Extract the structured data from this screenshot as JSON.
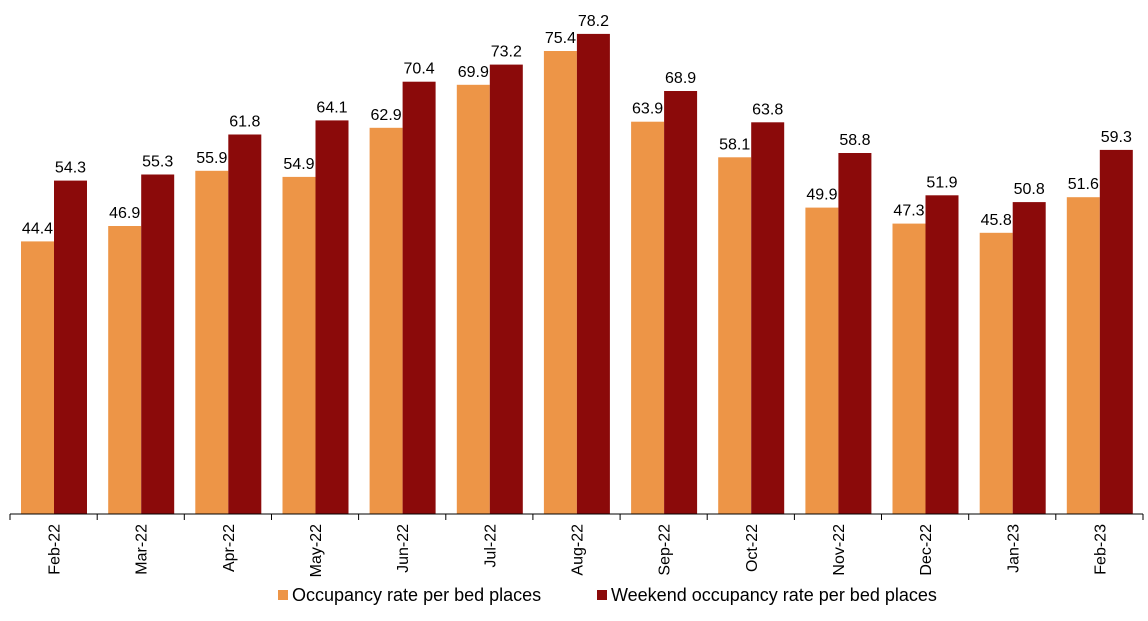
{
  "chart_data": {
    "type": "bar",
    "categories": [
      "Feb-22",
      "Mar-22",
      "Apr-22",
      "May-22",
      "Jun-22",
      "Jul-22",
      "Aug-22",
      "Sep-22",
      "Oct-22",
      "Nov-22",
      "Dec-22",
      "Jan-23",
      "Feb-23"
    ],
    "series": [
      {
        "name": "Occupancy rate per bed places",
        "color": "#ED9547",
        "values": [
          44.4,
          46.9,
          55.9,
          54.9,
          62.9,
          69.9,
          75.4,
          63.9,
          58.1,
          49.9,
          47.3,
          45.8,
          51.6
        ]
      },
      {
        "name": "Weekend occupancy rate per bed places",
        "color": "#8B0A0A",
        "values": [
          54.3,
          55.3,
          61.8,
          64.1,
          70.4,
          73.2,
          78.2,
          68.9,
          63.8,
          58.8,
          51.9,
          50.8,
          59.3
        ]
      }
    ],
    "title": "",
    "xlabel": "",
    "ylabel": "",
    "ylim": [
      0,
      85
    ],
    "grid": false,
    "legend": "bottom",
    "data_labels": true
  }
}
